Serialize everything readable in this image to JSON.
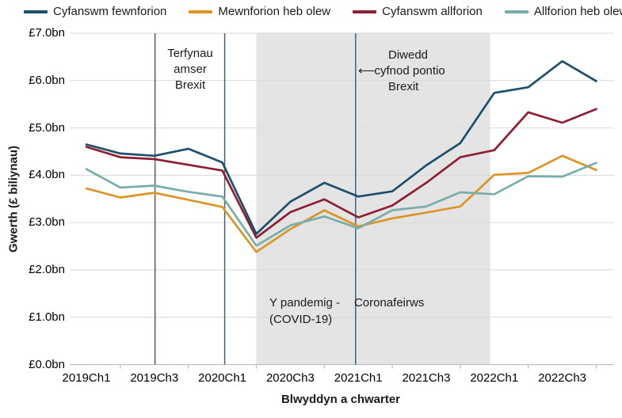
{
  "legend": {
    "items": [
      {
        "label": "Cyfanswm fewnforion",
        "color": "#1d4f6d"
      },
      {
        "label": "Mewnforion heb olew",
        "color": "#dd9426"
      },
      {
        "label": "Cyfanswm allforion",
        "color": "#8e1f33"
      },
      {
        "label": "Allforion heb olew",
        "color": "#77aeac"
      }
    ]
  },
  "y_axis": {
    "title": "Gwerth (£ biliynau)",
    "tick_labels": [
      "£0.0bn",
      "£1.0bn",
      "£2.0bn",
      "£3.0bn",
      "£4.0bn",
      "£5.0bn",
      "£6.0bn",
      "£7.0bn"
    ]
  },
  "x_axis": {
    "title": "Blwyddyn a chwarter",
    "tick_labels": [
      "2019Ch1",
      "2019Ch3",
      "2020Ch1",
      "2020Ch3",
      "2021Ch1",
      "2021Ch3",
      "2022Ch1",
      "2022Ch3"
    ]
  },
  "annotations": {
    "brexit_deadlines": {
      "line1": "Terfynau",
      "line2": "amser",
      "line3": "Brexit"
    },
    "transition_end": {
      "line1": "Diwedd",
      "arrow": "⟵",
      "line2": "cyfnod pontio",
      "line3": "Brexit"
    },
    "pandemic": {
      "part1": "Y pandemig -",
      "part2": "Coronafeirws",
      "line2": "(COVID-19)"
    }
  },
  "chart_data": {
    "type": "line",
    "title": "",
    "xlabel": "Blwyddyn a chwarter",
    "ylabel": "Gwerth (£ biliynau)",
    "ylim": [
      0,
      7
    ],
    "y_tick_step": 1,
    "grid": "horizontal",
    "legend_position": "top",
    "categories": [
      "2019Ch1",
      "2019Ch2",
      "2019Ch3",
      "2019Ch4",
      "2020Ch1",
      "2020Ch2",
      "2020Ch3",
      "2020Ch4",
      "2021Ch1",
      "2021Ch2",
      "2021Ch3",
      "2021Ch4",
      "2022Ch1",
      "2022Ch2",
      "2022Ch3",
      "2022Ch4"
    ],
    "x_ticks_shown": [
      "2019Ch1",
      "2019Ch3",
      "2020Ch1",
      "2020Ch3",
      "2021Ch1",
      "2021Ch3",
      "2022Ch1",
      "2022Ch3"
    ],
    "series": [
      {
        "name": "Mewnforion heb olew",
        "color": "#dd9426",
        "values": [
          3.72,
          3.53,
          3.63,
          3.48,
          3.33,
          2.38,
          2.86,
          3.26,
          2.92,
          3.09,
          3.21,
          3.34,
          4.01,
          4.05,
          4.41,
          4.11
        ]
      },
      {
        "name": "Allforion heb olew",
        "color": "#77aeac",
        "values": [
          4.13,
          3.74,
          3.78,
          3.65,
          3.55,
          2.51,
          2.94,
          3.13,
          2.88,
          3.26,
          3.34,
          3.64,
          3.6,
          3.98,
          3.97,
          4.26
        ]
      },
      {
        "name": "Cyfanswm allforion",
        "color": "#8e1f33",
        "values": [
          4.6,
          4.38,
          4.34,
          4.22,
          4.1,
          2.68,
          3.22,
          3.49,
          3.11,
          3.36,
          3.84,
          4.38,
          4.53,
          5.33,
          5.11,
          5.4
        ]
      },
      {
        "name": "Cyfanswm fewnforion",
        "color": "#1d4f6d",
        "values": [
          4.65,
          4.46,
          4.41,
          4.56,
          4.27,
          2.76,
          3.44,
          3.84,
          3.55,
          3.66,
          4.21,
          4.68,
          5.74,
          5.86,
          6.41,
          5.99
        ]
      }
    ],
    "shaded_region": {
      "from_index": 5.0,
      "to_index": 11.88,
      "color": "#e4e4e4",
      "label": "Y pandemig - Coronafeirws (COVID-19)"
    },
    "vlines": [
      {
        "index": 2.02,
        "label": "Terfynau amser Brexit"
      },
      {
        "index": 4.07,
        "label": "Terfynau amser Brexit"
      },
      {
        "index": 7.92,
        "label": "Diwedd cyfnod pontio Brexit"
      }
    ],
    "vline_color": "#3a6681",
    "gridline_color": "#d9d9d9",
    "axis_color": "#bfbfbf"
  }
}
